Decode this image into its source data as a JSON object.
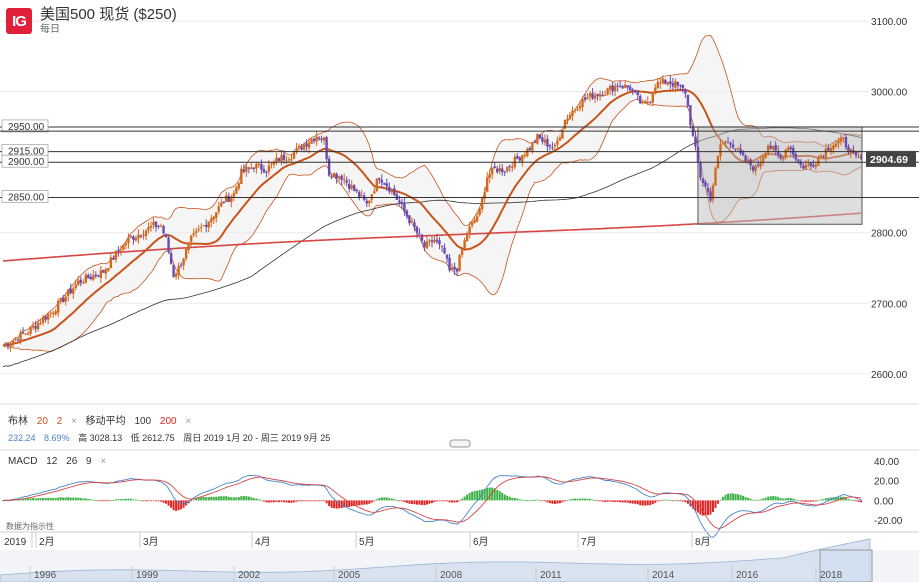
{
  "header": {
    "logo": "IG",
    "title": "美国500 现货 ($250)",
    "subtitle": "每日"
  },
  "indicators": {
    "boll_label": "布林",
    "boll_p1": "20",
    "boll_p2": "2",
    "ma_label": "移动平均",
    "ma_p1": "100",
    "ma_p2": "200",
    "close_icon": "×",
    "stat_change": "232.24",
    "stat_pct": "8.69%",
    "stat_high": "高 3028.13",
    "stat_low": "低 2612.75",
    "stat_range": "周日 2019 1月 20 - 周三 2019 9月 25",
    "macd_label": "MACD",
    "macd_p1": "12",
    "macd_p2": "26",
    "macd_p3": "9",
    "source_note": "数据为指示性"
  },
  "colors": {
    "bull": "#d2691e",
    "bear": "#6a4bb0",
    "boll": "#c8541c",
    "ma100": "#333333",
    "ma200": "#d64545",
    "macd_line": "#4a86c5",
    "signal_line": "#d64545",
    "hist_pos": "#3cb043",
    "hist_neg": "#e02424",
    "price_badge": "#444444"
  },
  "chart_data": {
    "type": "candlestick",
    "title": "美国500 现货 ($250)",
    "period": "每日",
    "ylim": [
      2560,
      3130
    ],
    "yticks": [
      2600,
      2700,
      2800,
      2900,
      3000,
      3100
    ],
    "ytick_labels": [
      "2600.00",
      "2700.00",
      "2800.00",
      "2900.00",
      "3000.00",
      "3100.00"
    ],
    "hlines": [
      {
        "value": 2950,
        "label": "2950.00"
      },
      {
        "value": 2944,
        "label": ""
      },
      {
        "value": 2915,
        "label": "2915.00"
      },
      {
        "value": 2900,
        "label": "2900.00"
      },
      {
        "value": 2850,
        "label": "2850.00"
      }
    ],
    "last_price": "2904.69",
    "x_months": [
      "2019",
      "2月",
      "3月",
      "4月",
      "5月",
      "6月",
      "7月",
      "8月"
    ],
    "nav_years": [
      "1996",
      "1999",
      "2002",
      "2005",
      "2008",
      "2011",
      "2014",
      "2016",
      "2018"
    ],
    "macd_yticks": [
      "40.00",
      "20.00",
      "0.00",
      "-20.00"
    ],
    "close_approx": [
      [
        0,
        2640
      ],
      [
        10,
        2660
      ],
      [
        20,
        2690
      ],
      [
        30,
        2730
      ],
      [
        40,
        2745
      ],
      [
        45,
        2770
      ],
      [
        50,
        2790
      ],
      [
        55,
        2800
      ],
      [
        60,
        2810
      ],
      [
        63,
        2810
      ],
      [
        65,
        2790
      ],
      [
        68,
        2740
      ],
      [
        70,
        2750
      ],
      [
        75,
        2790
      ],
      [
        80,
        2810
      ],
      [
        85,
        2830
      ],
      [
        88,
        2845
      ],
      [
        92,
        2855
      ],
      [
        95,
        2885
      ],
      [
        100,
        2895
      ],
      [
        105,
        2890
      ],
      [
        110,
        2905
      ],
      [
        115,
        2910
      ],
      [
        120,
        2925
      ],
      [
        125,
        2938
      ],
      [
        128,
        2932
      ],
      [
        130,
        2885
      ],
      [
        135,
        2880
      ],
      [
        140,
        2860
      ],
      [
        145,
        2840
      ],
      [
        150,
        2880
      ],
      [
        155,
        2860
      ],
      [
        160,
        2830
      ],
      [
        165,
        2800
      ],
      [
        168,
        2780
      ],
      [
        172,
        2790
      ],
      [
        176,
        2770
      ],
      [
        178,
        2745
      ],
      [
        181,
        2750
      ],
      [
        185,
        2800
      ],
      [
        190,
        2830
      ],
      [
        193,
        2880
      ],
      [
        196,
        2890
      ],
      [
        200,
        2890
      ],
      [
        205,
        2905
      ],
      [
        210,
        2920
      ],
      [
        213,
        2935
      ],
      [
        216,
        2928
      ],
      [
        220,
        2920
      ],
      [
        224,
        2960
      ],
      [
        230,
        2985
      ],
      [
        235,
        2995
      ],
      [
        240,
        3000
      ],
      [
        245,
        3010
      ],
      [
        250,
        3005
      ],
      [
        255,
        2980
      ],
      [
        258,
        2990
      ],
      [
        260,
        3010
      ],
      [
        265,
        3015
      ],
      [
        268,
        3010
      ],
      [
        272,
        3000
      ],
      [
        275,
        2935
      ],
      [
        278,
        2880
      ],
      [
        282,
        2850
      ],
      [
        286,
        2925
      ],
      [
        290,
        2930
      ],
      [
        295,
        2905
      ],
      [
        300,
        2890
      ],
      [
        305,
        2925
      ],
      [
        310,
        2905
      ],
      [
        313,
        2925
      ],
      [
        318,
        2895
      ],
      [
        322,
        2895
      ],
      [
        326,
        2910
      ],
      [
        330,
        2925
      ],
      [
        335,
        2930
      ],
      [
        340,
        2905
      ]
    ]
  }
}
